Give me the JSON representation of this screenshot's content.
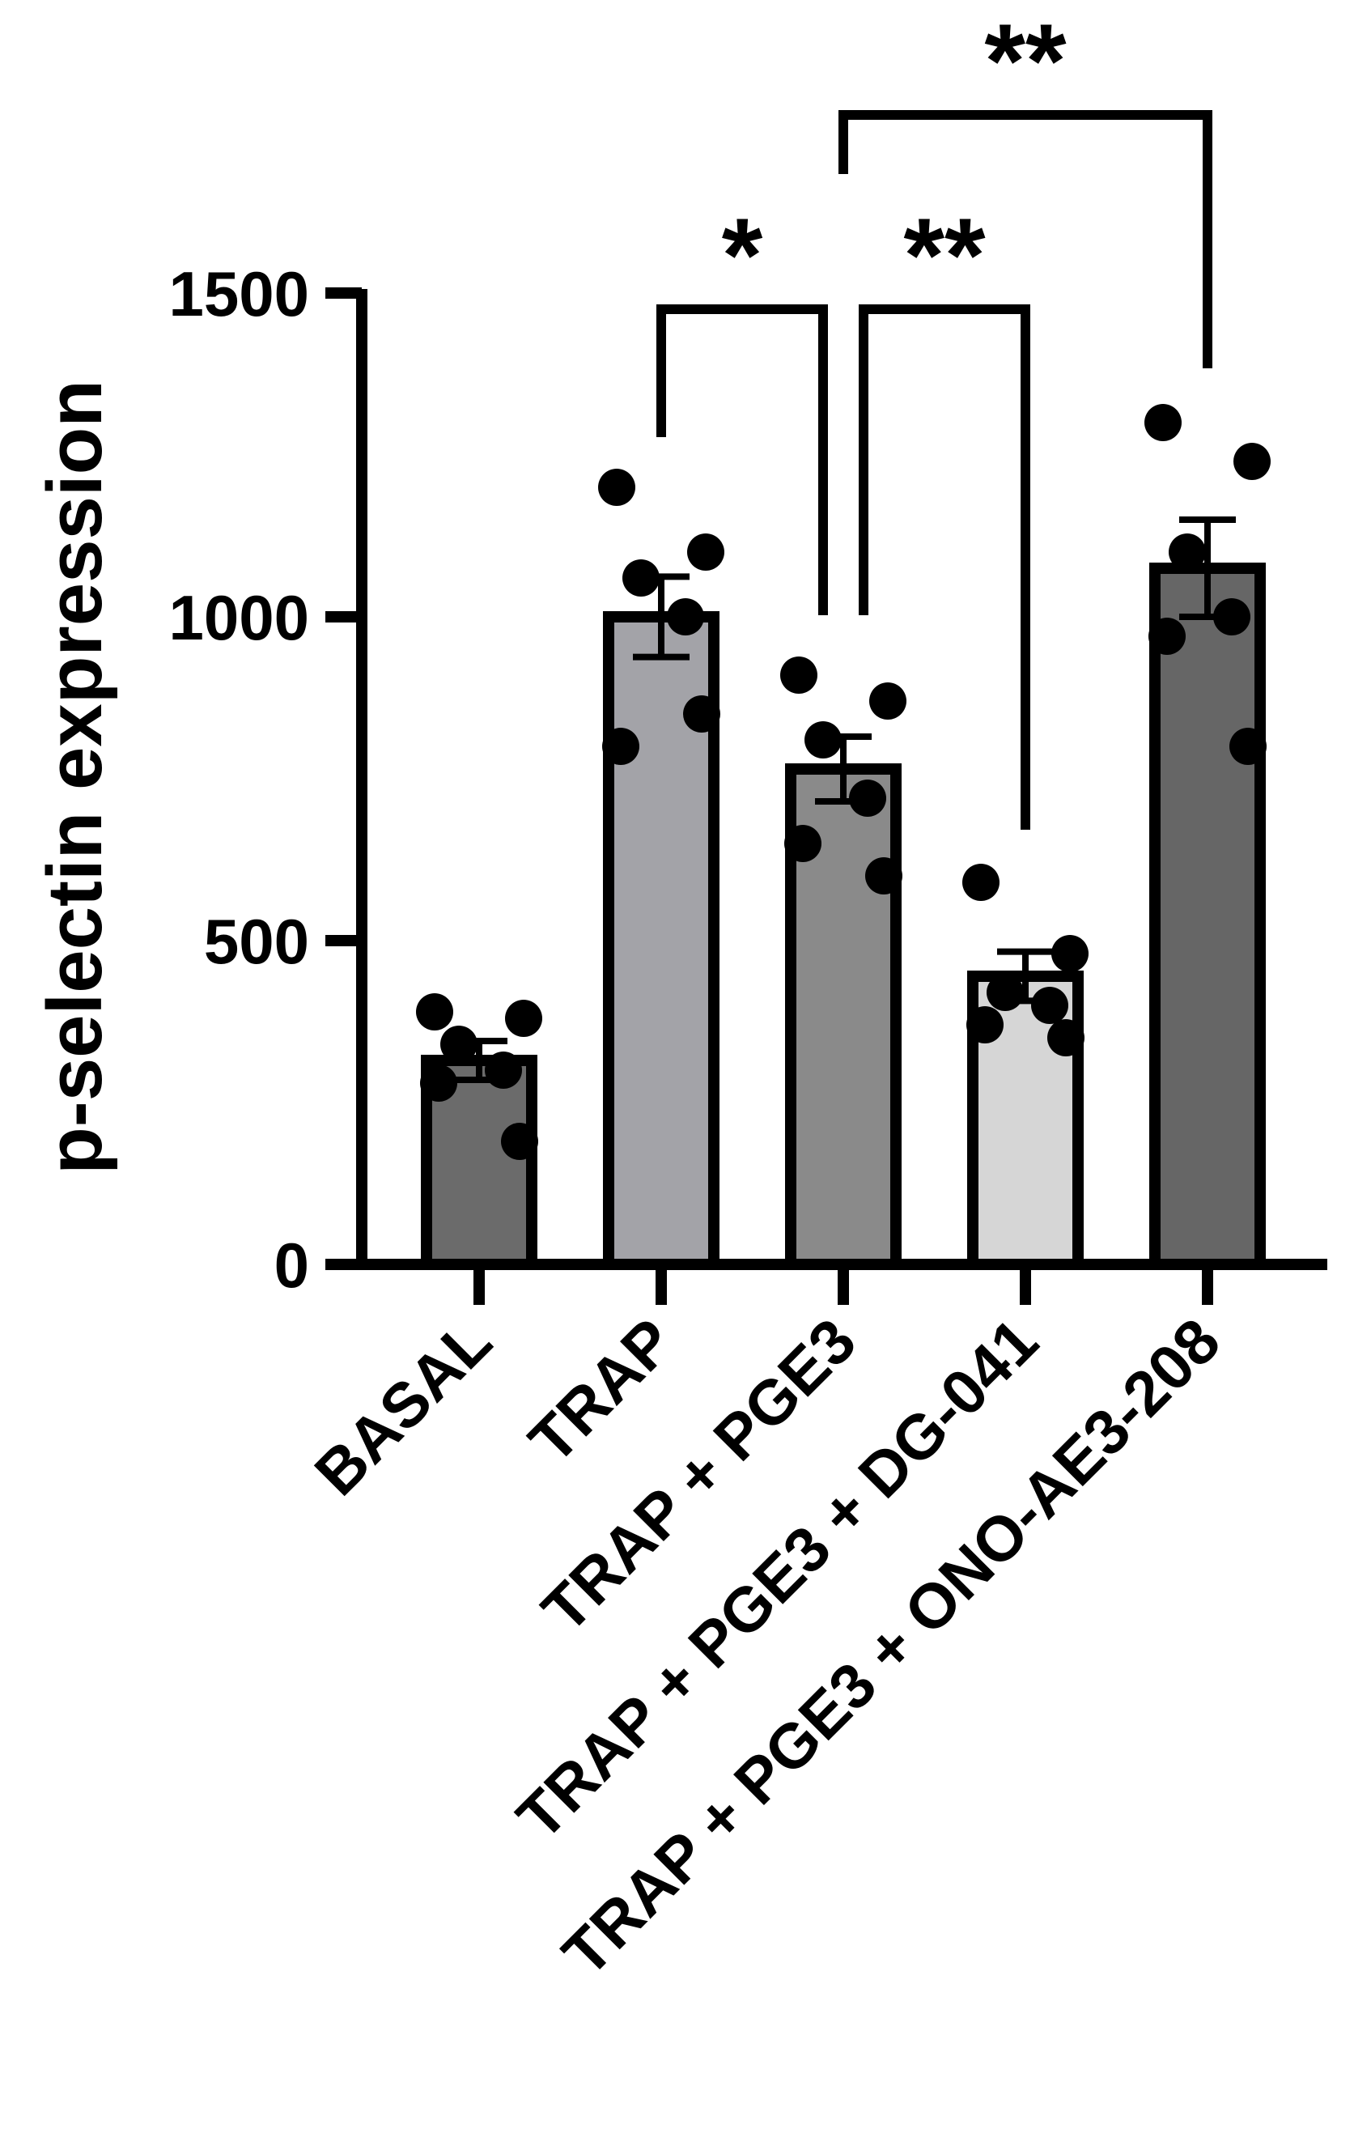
{
  "chart_data": {
    "type": "bar",
    "title": "",
    "xlabel": "",
    "ylabel": "p-selectin expression",
    "ylim": [
      0,
      1500
    ],
    "yticks": [
      0,
      500,
      1000,
      1500
    ],
    "grid": false,
    "legend": "none",
    "categories": [
      "BASAL",
      "TRAP",
      "TRAP + PGE3",
      "TRAP + PGE3 + DG-041",
      "TRAP + PGE3 + ONO-AE3-208"
    ],
    "values": [
      315,
      1000,
      765,
      445,
      1075
    ],
    "errors": [
      30,
      62,
      50,
      38,
      75
    ],
    "bar_colors": [
      "#6b6b6b",
      "#a3a3a8",
      "#8a8a8a",
      "#d6d6d6",
      "#666666"
    ],
    "points": [
      [
        390,
        380,
        340,
        300,
        280,
        190
      ],
      [
        1200,
        1100,
        1060,
        1000,
        800,
        850
      ],
      [
        910,
        870,
        810,
        720,
        650,
        600
      ],
      [
        590,
        480,
        420,
        400,
        370,
        350
      ],
      [
        1300,
        1240,
        1100,
        1000,
        970,
        800
      ]
    ],
    "comparisons": [
      {
        "from": 1,
        "to": 2,
        "label": "*"
      },
      {
        "from": 2,
        "to": 3,
        "label": "**"
      },
      {
        "from": 2,
        "to": 4,
        "label": "**"
      }
    ]
  }
}
